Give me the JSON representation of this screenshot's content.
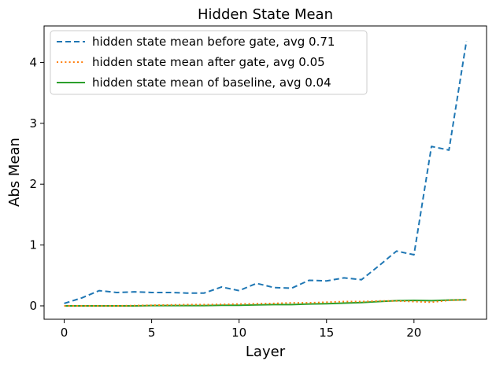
{
  "chart_data": {
    "type": "line",
    "title": "Hidden State Mean",
    "xlabel": "Layer",
    "ylabel": "Abs Mean",
    "xlim": [
      -1.15,
      24.15
    ],
    "ylim": [
      -0.22,
      4.6
    ],
    "x_ticks": [
      0,
      5,
      10,
      15,
      20
    ],
    "y_ticks": [
      0,
      1,
      2,
      3,
      4
    ],
    "grid": false,
    "legend_position": "upper-left",
    "x": [
      0,
      1,
      2,
      3,
      4,
      5,
      6,
      7,
      8,
      9,
      10,
      11,
      12,
      13,
      14,
      15,
      16,
      17,
      18,
      19,
      20,
      21,
      22,
      23
    ],
    "series": [
      {
        "name": "hidden state mean before gate, avg 0.71",
        "color": "#1f77b4",
        "style": "dashed",
        "values": [
          0.04,
          0.13,
          0.25,
          0.22,
          0.23,
          0.22,
          0.22,
          0.21,
          0.21,
          0.31,
          0.25,
          0.37,
          0.3,
          0.29,
          0.42,
          0.41,
          0.46,
          0.43,
          0.66,
          0.9,
          0.84,
          2.62,
          2.56,
          4.35
        ]
      },
      {
        "name": "hidden state mean after gate, avg 0.05",
        "color": "#ff7f0e",
        "style": "dotted",
        "values": [
          0.0,
          0.0,
          0.0,
          0.0,
          0.005,
          0.01,
          0.015,
          0.02,
          0.02,
          0.025,
          0.03,
          0.035,
          0.04,
          0.05,
          0.05,
          0.06,
          0.07,
          0.07,
          0.08,
          0.08,
          0.07,
          0.06,
          0.09,
          0.1
        ]
      },
      {
        "name": "hidden state mean of baseline, avg 0.04",
        "color": "#2ca02c",
        "style": "solid",
        "values": [
          0.0,
          0.0,
          0.0,
          0.0,
          0.0,
          0.005,
          0.005,
          0.005,
          0.005,
          0.01,
          0.01,
          0.015,
          0.02,
          0.02,
          0.03,
          0.035,
          0.045,
          0.055,
          0.07,
          0.085,
          0.09,
          0.085,
          0.095,
          0.1
        ]
      }
    ]
  }
}
